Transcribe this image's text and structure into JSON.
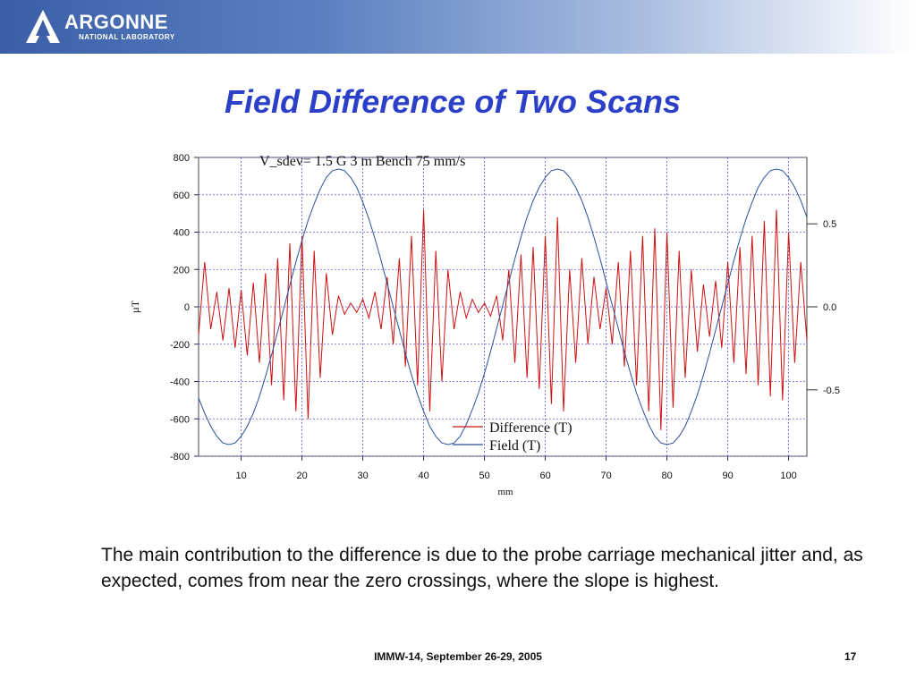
{
  "header": {
    "logo_name": "ARGONNE",
    "logo_sub": "NATIONAL LABORATORY",
    "logo_icon": "argonne-a-icon",
    "gradient_colors": [
      "#3a5fa8",
      "#ffffff"
    ]
  },
  "slide": {
    "title": "Field Difference of Two Scans",
    "body": "The main contribution to the difference is due to the probe carriage mechanical jitter and, as expected, comes from near the zero crossings, where the slope is highest.",
    "footer": "IMMW-14, September 26-29, 2005",
    "page_number": "17"
  },
  "chart_data": {
    "type": "line",
    "title": "V_sdev= 1.5 G 3 m Bench 75 mm/s",
    "xlabel": "mm",
    "ylabel": "µT",
    "xlim": [
      3,
      103
    ],
    "ylim": [
      -800,
      800
    ],
    "y2lim": [
      -0.9,
      0.9
    ],
    "x_ticks": [
      10,
      20,
      30,
      40,
      50,
      60,
      70,
      80,
      90,
      100
    ],
    "y_ticks": [
      800,
      600,
      400,
      200,
      0,
      -200,
      -400,
      -600,
      -800
    ],
    "y2_ticks": [
      0.5,
      0.0,
      -0.5
    ],
    "y2_tick_labels": [
      "0.5",
      "0.0",
      "-0.5"
    ],
    "grid": true,
    "legend_position": "bottom-center",
    "series": [
      {
        "name": "Difference (T)",
        "axis": "left",
        "color": "#cc1111",
        "x": [
          3,
          4,
          5,
          6,
          7,
          8,
          9,
          10,
          11,
          12,
          13,
          14,
          15,
          16,
          17,
          18,
          19,
          20,
          21,
          22,
          23,
          24,
          25,
          26,
          27,
          28,
          29,
          30,
          31,
          32,
          33,
          34,
          35,
          36,
          37,
          38,
          39,
          40,
          41,
          42,
          43,
          44,
          45,
          46,
          47,
          48,
          49,
          50,
          51,
          52,
          53,
          54,
          55,
          56,
          57,
          58,
          59,
          60,
          61,
          62,
          63,
          64,
          65,
          66,
          67,
          68,
          69,
          70,
          71,
          72,
          73,
          74,
          75,
          76,
          77,
          78,
          79,
          80,
          81,
          82,
          83,
          84,
          85,
          86,
          87,
          88,
          89,
          90,
          91,
          92,
          93,
          94,
          95,
          96,
          97,
          98,
          99,
          100,
          101,
          102,
          103
        ],
        "y": [
          -150,
          240,
          -120,
          80,
          -180,
          100,
          -220,
          90,
          -260,
          130,
          -300,
          180,
          -420,
          260,
          -500,
          340,
          -560,
          380,
          -600,
          300,
          -380,
          180,
          -150,
          60,
          -40,
          20,
          -30,
          40,
          -60,
          80,
          -120,
          160,
          -200,
          260,
          -320,
          380,
          -420,
          520,
          -560,
          300,
          -400,
          200,
          -120,
          80,
          -60,
          40,
          -30,
          20,
          -50,
          60,
          -180,
          200,
          -300,
          280,
          -380,
          320,
          -440,
          380,
          -520,
          480,
          -560,
          200,
          -300,
          260,
          -200,
          160,
          -120,
          100,
          -200,
          240,
          -320,
          300,
          -420,
          380,
          -560,
          420,
          -660,
          400,
          -540,
          300,
          -380,
          200,
          -240,
          120,
          -160,
          140,
          -220,
          240,
          -300,
          320,
          -360,
          380,
          -420,
          460,
          -480,
          520,
          -500,
          400,
          -300,
          240,
          -180
        ]
      },
      {
        "name": "Field (T)",
        "axis": "right",
        "color": "#2a4f9a",
        "x": [
          3,
          4,
          5,
          6,
          7,
          8,
          9,
          10,
          11,
          12,
          13,
          14,
          15,
          16,
          17,
          18,
          19,
          20,
          21,
          22,
          23,
          24,
          25,
          26,
          27,
          28,
          29,
          30,
          31,
          32,
          33,
          34,
          35,
          36,
          37,
          38,
          39,
          40,
          41,
          42,
          43,
          44,
          45,
          46,
          47,
          48,
          49,
          50,
          51,
          52,
          53,
          54,
          55,
          56,
          57,
          58,
          59,
          60,
          61,
          62,
          63,
          64,
          65,
          66,
          67,
          68,
          69,
          70,
          71,
          72,
          73,
          74,
          75,
          76,
          77,
          78,
          79,
          80,
          81,
          82,
          83,
          84,
          85,
          86,
          87,
          88,
          89,
          90,
          91,
          92,
          93,
          94,
          95,
          96,
          97,
          98,
          99,
          100,
          101,
          102,
          103
        ],
        "y": [
          -0.55,
          -0.64,
          -0.72,
          -0.78,
          -0.82,
          -0.83,
          -0.82,
          -0.78,
          -0.72,
          -0.64,
          -0.54,
          -0.42,
          -0.29,
          -0.15,
          -0.01,
          0.13,
          0.27,
          0.4,
          0.52,
          0.62,
          0.71,
          0.78,
          0.82,
          0.83,
          0.82,
          0.78,
          0.72,
          0.63,
          0.53,
          0.41,
          0.28,
          0.14,
          0.0,
          -0.14,
          -0.28,
          -0.41,
          -0.53,
          -0.63,
          -0.72,
          -0.78,
          -0.82,
          -0.83,
          -0.82,
          -0.78,
          -0.71,
          -0.62,
          -0.52,
          -0.4,
          -0.27,
          -0.13,
          0.01,
          0.15,
          0.29,
          0.42,
          0.54,
          0.64,
          0.72,
          0.78,
          0.82,
          0.83,
          0.82,
          0.78,
          0.72,
          0.64,
          0.54,
          0.42,
          0.29,
          0.15,
          0.01,
          -0.13,
          -0.27,
          -0.4,
          -0.52,
          -0.62,
          -0.71,
          -0.78,
          -0.82,
          -0.83,
          -0.82,
          -0.78,
          -0.72,
          -0.63,
          -0.53,
          -0.41,
          -0.28,
          -0.14,
          0.0,
          0.14,
          0.28,
          0.41,
          0.53,
          0.63,
          0.72,
          0.78,
          0.82,
          0.83,
          0.82,
          0.78,
          0.72,
          0.64,
          0.54
        ]
      }
    ]
  }
}
